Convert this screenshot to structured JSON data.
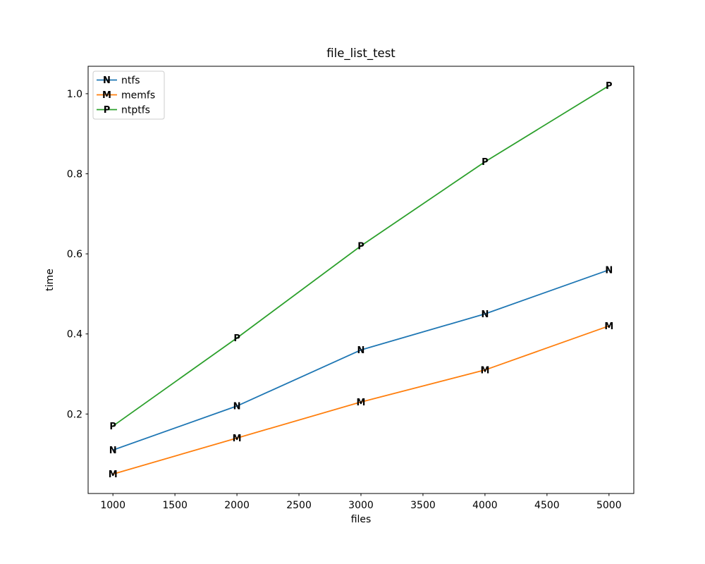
{
  "chart_data": {
    "type": "line",
    "title": "file_list_test",
    "xlabel": "files",
    "ylabel": "time",
    "x": [
      1000,
      2000,
      3000,
      4000,
      5000
    ],
    "series": [
      {
        "name": "ntfs",
        "marker": "N",
        "color": "#1f77b4",
        "values": [
          0.11,
          0.22,
          0.36,
          0.45,
          0.56
        ]
      },
      {
        "name": "memfs",
        "marker": "M",
        "color": "#ff7f0e",
        "values": [
          0.05,
          0.14,
          0.23,
          0.31,
          0.42
        ]
      },
      {
        "name": "ntptfs",
        "marker": "P",
        "color": "#2ca02c",
        "values": [
          0.17,
          0.39,
          0.62,
          0.83,
          1.02
        ]
      }
    ],
    "x_ticks": [
      1000,
      1500,
      2000,
      2500,
      3000,
      3500,
      4000,
      4500,
      5000
    ],
    "y_ticks": [
      0.2,
      0.4,
      0.6,
      0.8,
      1.0
    ],
    "xlim": [
      800,
      5200
    ],
    "ylim": [
      0.0015,
      1.0685
    ],
    "grid": false,
    "legend_position": "upper left",
    "frame_color": "#000000",
    "legend_edge_color": "#cccccc"
  }
}
